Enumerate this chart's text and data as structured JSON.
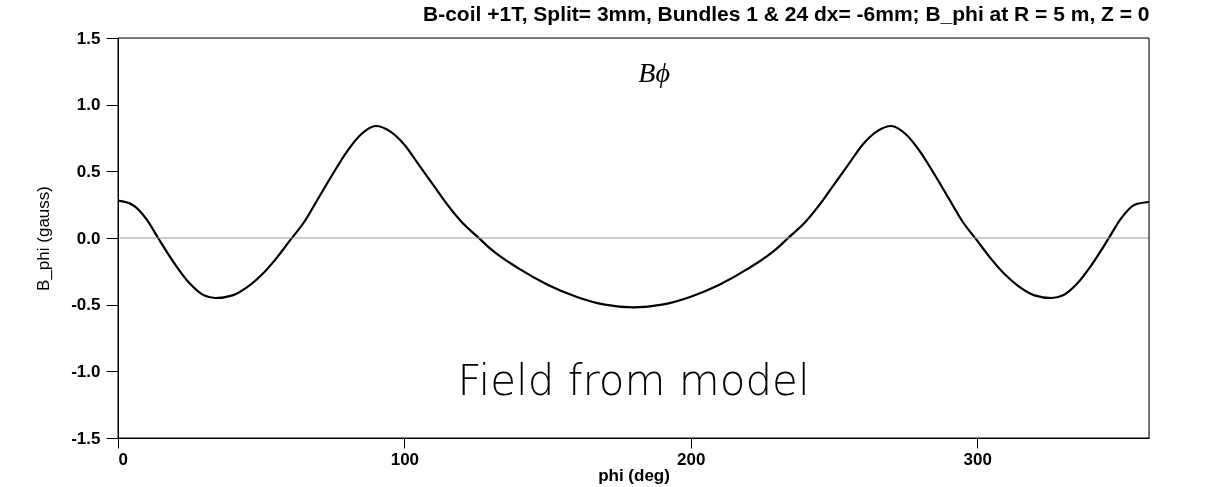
{
  "chart_data": {
    "type": "line",
    "title": "B-coil +1T, Split= 3mm, Bundles 1 & 24 dx= -6mm;  B_phi at R = 5 m, Z = 0",
    "xlabel": "phi (deg)",
    "ylabel": "B_phi (gauss)",
    "x": [
      0,
      5,
      10,
      14,
      20,
      25,
      30,
      34,
      40,
      45,
      50,
      55,
      60,
      65,
      70,
      75,
      80,
      85,
      90,
      95,
      100,
      105,
      110,
      115,
      120,
      126,
      130,
      140,
      150,
      160,
      170,
      180,
      190,
      200,
      210,
      220,
      230,
      234,
      240,
      245,
      250,
      255,
      260,
      265,
      270,
      275,
      280,
      285,
      290,
      295,
      300,
      305,
      310,
      315,
      320,
      326,
      330,
      335,
      340,
      346,
      350,
      355,
      360
    ],
    "series": [
      {
        "color": "#000000",
        "values": [
          0.28,
          0.25,
          0.14,
          0.0,
          -0.2,
          -0.34,
          -0.43,
          -0.45,
          -0.43,
          -0.37,
          -0.28,
          -0.16,
          -0.02,
          0.12,
          0.3,
          0.48,
          0.65,
          0.78,
          0.84,
          0.8,
          0.7,
          0.55,
          0.4,
          0.25,
          0.12,
          0.0,
          -0.08,
          -0.23,
          -0.35,
          -0.44,
          -0.5,
          -0.52,
          -0.5,
          -0.44,
          -0.35,
          -0.23,
          -0.08,
          0.0,
          0.12,
          0.25,
          0.4,
          0.55,
          0.7,
          0.8,
          0.84,
          0.78,
          0.65,
          0.48,
          0.3,
          0.12,
          -0.02,
          -0.16,
          -0.28,
          -0.37,
          -0.43,
          -0.45,
          -0.43,
          -0.34,
          -0.2,
          0.0,
          0.14,
          0.25,
          0.27
        ]
      }
    ],
    "xlim": [
      0,
      360
    ],
    "xticks": [
      0,
      100,
      200,
      300
    ],
    "ylim": [
      -1.5,
      1.5
    ],
    "yticks": [
      {
        "value": -1.5,
        "label": "-1.5"
      },
      {
        "value": -1,
        "label": "-1.0"
      },
      {
        "value": -0.5,
        "label": "-0.5"
      },
      {
        "value": 0,
        "label": "0.0"
      },
      {
        "value": 0.5,
        "label": "0.5"
      },
      {
        "value": 1,
        "label": "1.0"
      },
      {
        "value": 1.5,
        "label": "1.5"
      }
    ],
    "ref_lines": [
      {
        "axis": "y",
        "value": 0,
        "color": "#999999"
      }
    ],
    "annotations": [
      "Bϕ",
      "Field from model"
    ],
    "grid": false,
    "marker": "none",
    "line_style": "solid"
  }
}
